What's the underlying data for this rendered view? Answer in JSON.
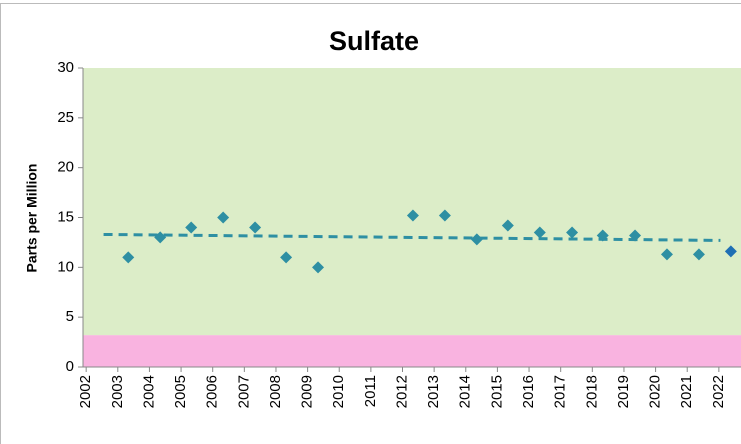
{
  "chart_data": {
    "type": "scatter",
    "title": "Sulfate",
    "y_label": "Parts per Million",
    "x": [
      2003.33,
      2004.34,
      2005.32,
      2006.33,
      2007.34,
      2008.32,
      2009.33,
      2012.33,
      2013.34,
      2014.35,
      2015.33,
      2016.34,
      2017.36,
      2018.33,
      2019.35,
      2020.36,
      2021.37,
      2022.38
    ],
    "values": [
      11.0,
      13.0,
      14.0,
      15.0,
      14.0,
      11.0,
      10.0,
      15.2,
      15.2,
      12.8,
      14.2,
      13.5,
      13.5,
      13.2,
      13.2,
      11.3,
      11.3,
      11.6
    ],
    "colors": [
      "#2e8fa3",
      "#2e8fa3",
      "#2e8fa3",
      "#2e8fa3",
      "#2e8fa3",
      "#2e8fa3",
      "#2e8fa3",
      "#2e8fa3",
      "#2e8fa3",
      "#2e8fa3",
      "#2e8fa3",
      "#2e8fa3",
      "#2e8fa3",
      "#2e8fa3",
      "#2e8fa3",
      "#2e8fa3",
      "#2e8fa3",
      "#1f6fb4"
    ],
    "trend": {
      "x": [
        2002.55,
        2022.05
      ],
      "values": [
        13.3,
        12.7
      ],
      "color": "#2e8fa3"
    },
    "bands": [
      {
        "from": 0,
        "to": 3.2,
        "color": "#f9b3e0"
      },
      {
        "from": 3.2,
        "to": 30,
        "color": "#dcedc8"
      }
    ],
    "xlim": [
      2001.9,
      2022.7
    ],
    "ylim": [
      0,
      30
    ],
    "xticks": [
      2002,
      2003,
      2004,
      2005,
      2006,
      2007,
      2008,
      2009,
      2010,
      2011,
      2012,
      2013,
      2014,
      2015,
      2016,
      2017,
      2018,
      2019,
      2020,
      2021,
      2022
    ],
    "yticks": [
      0,
      5,
      10,
      15,
      20,
      25,
      30
    ]
  }
}
